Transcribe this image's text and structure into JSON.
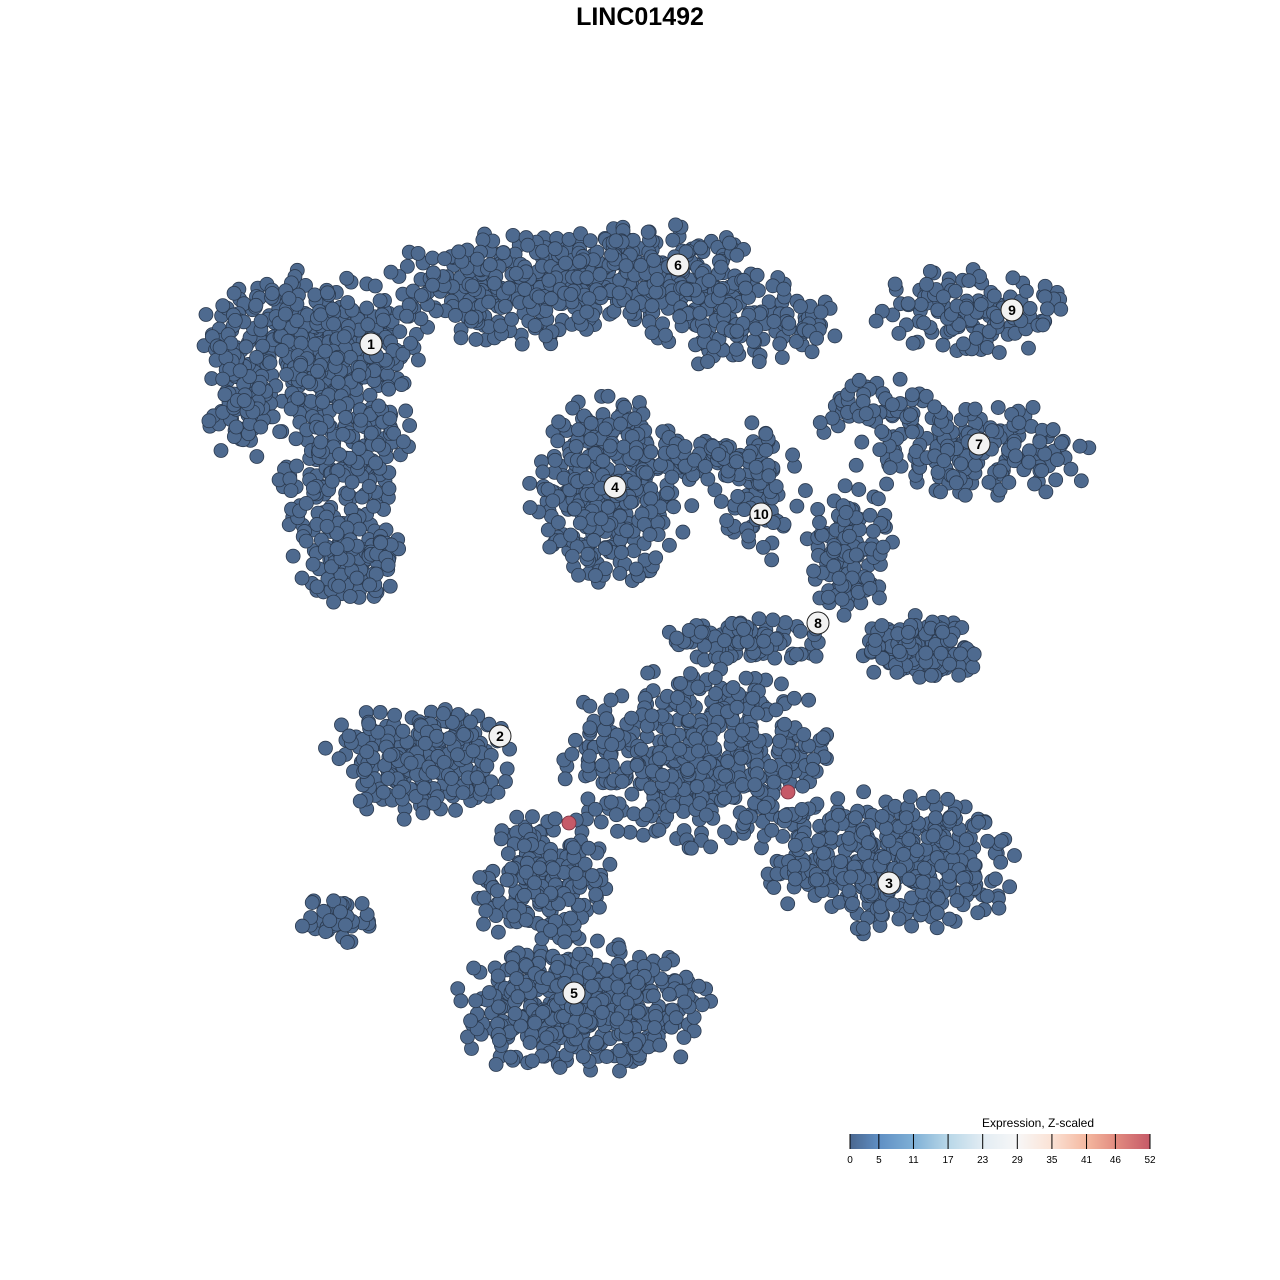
{
  "chart_data": {
    "type": "scatter",
    "title": "LINC01492",
    "xlabel": "",
    "ylabel": "",
    "xlim": [
      -45,
      50
    ],
    "ylim": [
      -46,
      46
    ],
    "grid": false,
    "axes_visible": false,
    "point_color_low": "#4e6a8f",
    "point_stroke": "#2b3a4f",
    "clusters": [
      {
        "label": "1",
        "x": -26.9,
        "y": 29.6,
        "blobs": [
          [
            -33,
            30,
            10,
            6,
            350
          ],
          [
            -30,
            20,
            6,
            10,
            260
          ],
          [
            -29,
            8,
            5,
            4,
            120
          ],
          [
            -40,
            24,
            3,
            6,
            80
          ],
          [
            -12,
            35,
            12,
            5,
            300
          ]
        ]
      },
      {
        "label": "6",
        "x": 3.8,
        "y": 37.5,
        "blobs": [
          [
            0,
            37,
            11,
            4,
            260
          ],
          [
            10,
            32,
            9,
            4,
            150
          ]
        ]
      },
      {
        "label": "4",
        "x": -2.5,
        "y": 15.3,
        "blobs": [
          [
            -3,
            15,
            7,
            8,
            360
          ]
        ]
      },
      {
        "label": "10",
        "x": 12.1,
        "y": 12.6,
        "blobs": [
          [
            12,
            15,
            4,
            6,
            80
          ],
          [
            8,
            18,
            6,
            2,
            60
          ]
        ]
      },
      {
        "label": "9",
        "x": 37.2,
        "y": 33.0,
        "blobs": [
          [
            33,
            33,
            8,
            4,
            130
          ]
        ]
      },
      {
        "label": "7",
        "x": 33.9,
        "y": 19.6,
        "blobs": [
          [
            34,
            19,
            11,
            4,
            190
          ],
          [
            24,
            23,
            6,
            3,
            60
          ]
        ]
      },
      {
        "label": "8",
        "x": 17.8,
        "y": 1.7,
        "blobs": [
          [
            21,
            9,
            4,
            6,
            120
          ],
          [
            28,
            -1,
            5,
            3,
            150
          ],
          [
            11,
            0,
            8,
            2,
            100
          ]
        ]
      },
      {
        "label": "2",
        "x": -14.0,
        "y": -9.6,
        "blobs": [
          [
            -22,
            -12,
            8,
            5,
            260
          ]
        ]
      },
      {
        "label": "3",
        "x": 24.9,
        "y": -24.3,
        "blobs": [
          [
            25,
            -22,
            11,
            6,
            420
          ],
          [
            6,
            -12,
            12,
            8,
            500
          ]
        ]
      },
      {
        "label": "5",
        "x": -6.6,
        "y": -35.3,
        "blobs": [
          [
            -6,
            -37,
            11,
            6,
            460
          ],
          [
            -10,
            -24,
            6,
            6,
            200
          ],
          [
            -30,
            -28,
            4,
            2,
            40
          ]
        ]
      }
    ],
    "highlighted_points": [
      {
        "x": -7.1,
        "y": -18.3,
        "value": 52
      },
      {
        "x": 14.8,
        "y": -15.2,
        "value": 52
      }
    ],
    "legend": {
      "title": "Expression, Z-scaled",
      "placement": "bottom-right",
      "ticks": [
        "0",
        "5",
        "11",
        "17",
        "23",
        "29",
        "35",
        "41",
        "46",
        "52"
      ],
      "range": [
        0,
        52
      ],
      "colors": [
        "#4a6790",
        "#5f8fc4",
        "#7fb0d6",
        "#b8d7e8",
        "#e2ecf3",
        "#f7f7f7",
        "#fbe2d5",
        "#f4b8a0",
        "#e28c80",
        "#c65a68"
      ]
    }
  }
}
